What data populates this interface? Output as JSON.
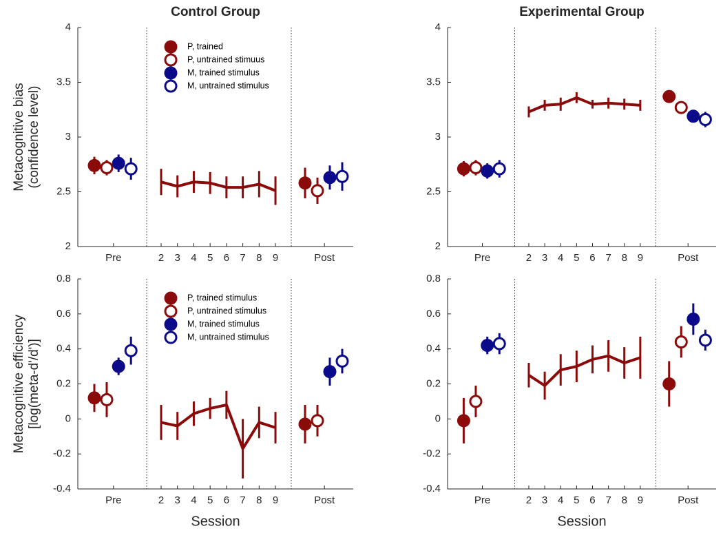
{
  "chart_data": [
    {
      "type": "errorbar",
      "title": "Control Group",
      "ylabel": [
        "Metacognitive bias",
        "(confidence level)"
      ],
      "ylim": [
        2,
        4
      ],
      "yticks": [
        2,
        2.5,
        3,
        3.5,
        4
      ],
      "legend": true,
      "categories": [
        "Pre",
        "Post"
      ],
      "series": [
        {
          "name": "P, trained",
          "color": "#8b0a0a",
          "filled": true,
          "values": [
            2.74,
            2.58
          ],
          "errors": [
            0.08,
            0.14
          ]
        },
        {
          "name": "P, untrained stimuus",
          "color": "#8b0a0a",
          "filled": false,
          "values": [
            2.72,
            2.51
          ],
          "errors": [
            0.07,
            0.12
          ]
        },
        {
          "name": "M, trained stimulus",
          "color": "#0a0a8b",
          "filled": true,
          "values": [
            2.76,
            2.63
          ],
          "errors": [
            0.08,
            0.11
          ]
        },
        {
          "name": "M, untrained stimulus",
          "color": "#0a0a8b",
          "filled": false,
          "values": [
            2.71,
            2.64
          ],
          "errors": [
            0.1,
            0.13
          ]
        }
      ],
      "sessions": {
        "color": "#8b0a0a",
        "x": [
          2,
          3,
          4,
          5,
          6,
          7,
          8,
          9
        ],
        "values": [
          2.59,
          2.55,
          2.59,
          2.58,
          2.54,
          2.54,
          2.57,
          2.51
        ],
        "errors": [
          0.12,
          0.1,
          0.1,
          0.1,
          0.1,
          0.1,
          0.12,
          0.13
        ]
      }
    },
    {
      "type": "errorbar",
      "title": "Experimental Group",
      "ylim": [
        2,
        4
      ],
      "yticks": [
        2,
        2.5,
        3,
        3.5,
        4
      ],
      "categories": [
        "Pre",
        "Post"
      ],
      "series": [
        {
          "color": "#8b0a0a",
          "filled": true,
          "values": [
            2.71,
            3.37
          ],
          "errors": [
            0.07,
            0.03
          ]
        },
        {
          "color": "#8b0a0a",
          "filled": false,
          "values": [
            2.72,
            3.27
          ],
          "errors": [
            0.07,
            0.04
          ]
        },
        {
          "color": "#0a0a8b",
          "filled": true,
          "values": [
            2.69,
            3.19
          ],
          "errors": [
            0.07,
            0.05
          ]
        },
        {
          "color": "#0a0a8b",
          "filled": false,
          "values": [
            2.71,
            3.16
          ],
          "errors": [
            0.08,
            0.07
          ]
        }
      ],
      "sessions": {
        "color": "#8b0a0a",
        "x": [
          2,
          3,
          4,
          5,
          6,
          7,
          8,
          9
        ],
        "values": [
          3.23,
          3.29,
          3.3,
          3.36,
          3.3,
          3.31,
          3.3,
          3.29
        ],
        "errors": [
          0.05,
          0.05,
          0.06,
          0.05,
          0.04,
          0.05,
          0.05,
          0.05
        ]
      }
    },
    {
      "type": "errorbar",
      "ylabel": [
        "Metacognitive efficiency",
        "[log(meta-d'/d')]"
      ],
      "xlabel": "Session",
      "ylim": [
        -0.4,
        0.8
      ],
      "yticks": [
        -0.4,
        -0.2,
        0,
        0.2,
        0.4,
        0.6,
        0.8
      ],
      "legend": true,
      "categories": [
        "Pre",
        "Post"
      ],
      "series": [
        {
          "name": "P, trained stimulus",
          "color": "#8b0a0a",
          "filled": true,
          "values": [
            0.12,
            -0.03
          ],
          "errors": [
            0.08,
            0.11
          ]
        },
        {
          "name": "P, untrained stimulus",
          "color": "#8b0a0a",
          "filled": false,
          "values": [
            0.11,
            -0.01
          ],
          "errors": [
            0.1,
            0.09
          ]
        },
        {
          "name": "M, trained stimulus",
          "color": "#0a0a8b",
          "filled": true,
          "values": [
            0.3,
            0.27
          ],
          "errors": [
            0.05,
            0.08
          ]
        },
        {
          "name": "M, untrained stimulus",
          "color": "#0a0a8b",
          "filled": false,
          "values": [
            0.39,
            0.33
          ],
          "errors": [
            0.08,
            0.07
          ]
        }
      ],
      "sessions": {
        "color": "#8b0a0a",
        "x": [
          2,
          3,
          4,
          5,
          6,
          7,
          8,
          9
        ],
        "values": [
          -0.02,
          -0.04,
          0.03,
          0.06,
          0.08,
          -0.17,
          -0.02,
          -0.05
        ],
        "errors": [
          0.1,
          0.08,
          0.07,
          0.06,
          0.08,
          0.17,
          0.09,
          0.09
        ]
      }
    },
    {
      "type": "errorbar",
      "xlabel": "Session",
      "ylim": [
        -0.4,
        0.8
      ],
      "yticks": [
        -0.4,
        -0.2,
        0,
        0.2,
        0.4,
        0.6,
        0.8
      ],
      "categories": [
        "Pre",
        "Post"
      ],
      "series": [
        {
          "color": "#8b0a0a",
          "filled": true,
          "values": [
            -0.01,
            0.2
          ],
          "errors": [
            0.13,
            0.13
          ]
        },
        {
          "color": "#8b0a0a",
          "filled": false,
          "values": [
            0.1,
            0.44
          ],
          "errors": [
            0.09,
            0.09
          ]
        },
        {
          "color": "#0a0a8b",
          "filled": true,
          "values": [
            0.42,
            0.57
          ],
          "errors": [
            0.05,
            0.09
          ]
        },
        {
          "color": "#0a0a8b",
          "filled": false,
          "values": [
            0.43,
            0.45
          ],
          "errors": [
            0.06,
            0.06
          ]
        }
      ],
      "sessions": {
        "color": "#8b0a0a",
        "x": [
          2,
          3,
          4,
          5,
          6,
          7,
          8,
          9
        ],
        "values": [
          0.25,
          0.19,
          0.28,
          0.3,
          0.34,
          0.36,
          0.32,
          0.35
        ],
        "errors": [
          0.07,
          0.08,
          0.09,
          0.09,
          0.08,
          0.09,
          0.09,
          0.12
        ]
      }
    }
  ]
}
